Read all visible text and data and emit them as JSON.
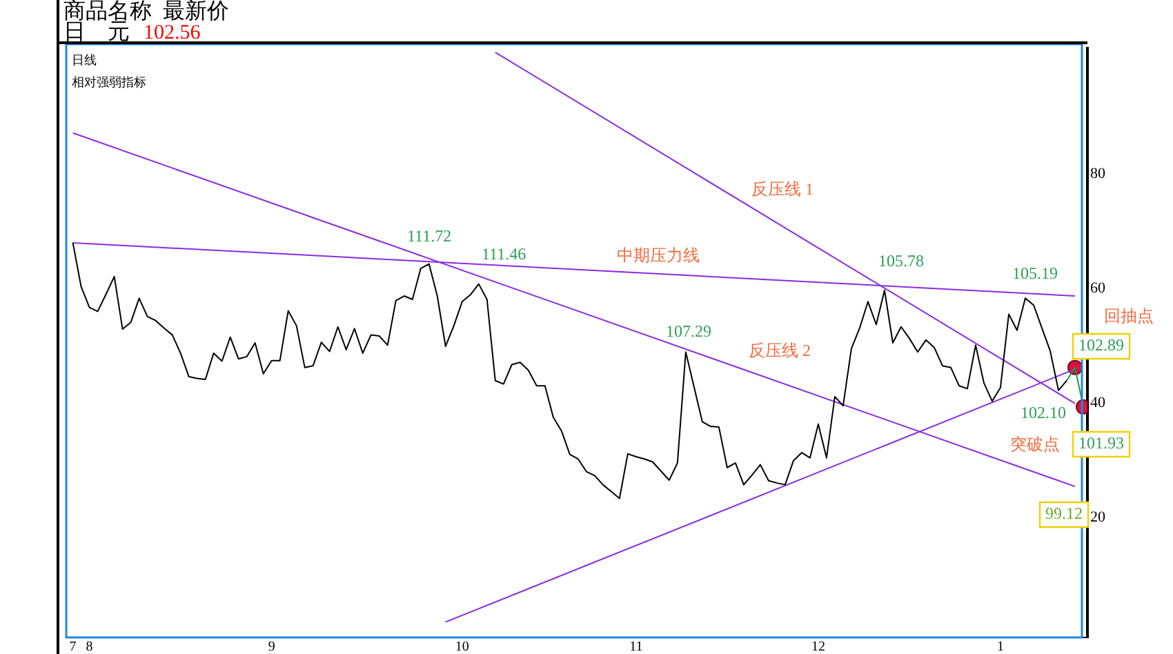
{
  "chart_data": {
    "type": "line",
    "title": "商品名称  最新价",
    "subtitle": "日    元",
    "categories": [
      "7",
      null,
      "8",
      null,
      null,
      null,
      null,
      null,
      null,
      null,
      null,
      null,
      null,
      null,
      null,
      null,
      null,
      null,
      null,
      null,
      null,
      null,
      null,
      null,
      "9",
      null,
      null,
      null,
      null,
      null,
      null,
      null,
      null,
      null,
      null,
      null,
      null,
      null,
      null,
      null,
      null,
      null,
      null,
      null,
      null,
      null,
      null,
      "10",
      null,
      null,
      null,
      null,
      null,
      null,
      null,
      null,
      null,
      null,
      null,
      null,
      null,
      null,
      null,
      null,
      null,
      null,
      null,
      null,
      "11",
      null,
      null,
      null,
      null,
      null,
      null,
      null,
      null,
      null,
      null,
      null,
      null,
      null,
      null,
      null,
      null,
      null,
      null,
      null,
      null,
      null,
      "12",
      null,
      null,
      null,
      null,
      null,
      null,
      null,
      null,
      null,
      null,
      null,
      null,
      null,
      null,
      null,
      null,
      null,
      null,
      null,
      null,
      null,
      "1",
      null,
      null,
      null,
      null,
      null,
      null,
      null,
      null,
      null,
      null
    ],
    "ylim": [
      -1,
      102
    ],
    "yticks": [
      20,
      40,
      60,
      80
    ],
    "grid": false,
    "legend": false,
    "marker": "none",
    "series": [
      {
        "color": "#000000",
        "values": [
          68.0,
          60.3,
          56.7,
          56.0,
          59.0,
          62.1,
          52.9,
          54.1,
          58.3,
          55.1,
          54.4,
          53.1,
          51.9,
          48.7,
          44.6,
          44.3,
          44.1,
          48.7,
          47.3,
          51.5,
          47.7,
          48.1,
          50.5,
          45.1,
          47.4,
          47.4,
          56.1,
          53.5,
          46.2,
          46.5,
          50.6,
          49.0,
          53.3,
          49.3,
          53.0,
          48.7,
          51.9,
          51.7,
          50.1,
          57.9,
          58.7,
          58.1,
          63.5,
          64.3,
          58.7,
          49.9,
          53.5,
          57.7,
          58.9,
          60.8,
          58.1,
          43.9,
          43.3,
          46.7,
          47.1,
          45.7,
          43.0,
          43.0,
          37.5,
          35.1,
          31.0,
          30.2,
          28.0,
          27.3,
          25.7,
          24.5,
          23.3,
          31.1,
          30.6,
          30.2,
          29.7,
          28.1,
          26.5,
          29.5,
          48.9,
          42.8,
          36.7,
          35.9,
          35.8,
          28.7,
          29.5,
          25.7,
          27.4,
          29.2,
          26.4,
          26.0,
          25.7,
          29.9,
          31.3,
          30.4,
          36.3,
          30.4,
          41.1,
          39.5,
          49.5,
          53.1,
          57.7,
          53.7,
          59.7,
          50.5,
          53.3,
          51.3,
          48.9,
          51.0,
          49.7,
          46.5,
          46.2,
          43.0,
          42.5,
          50.1,
          43.5,
          40.3,
          42.7,
          55.5,
          52.7,
          58.3,
          57.1,
          53.1,
          49.1,
          42.2,
          43.9,
          null,
          null
        ]
      },
      {
        "color": "#1a9a3a",
        "values": [
          null,
          null,
          null,
          null,
          null,
          null,
          null,
          null,
          null,
          null,
          null,
          null,
          null,
          null,
          null,
          null,
          null,
          null,
          null,
          null,
          null,
          null,
          null,
          null,
          null,
          null,
          null,
          null,
          null,
          null,
          null,
          null,
          null,
          null,
          null,
          null,
          null,
          null,
          null,
          null,
          null,
          null,
          null,
          null,
          null,
          null,
          null,
          null,
          null,
          null,
          null,
          null,
          null,
          null,
          null,
          null,
          null,
          null,
          null,
          null,
          null,
          null,
          null,
          null,
          null,
          null,
          null,
          null,
          null,
          null,
          null,
          null,
          null,
          null,
          null,
          null,
          null,
          null,
          null,
          null,
          null,
          null,
          null,
          null,
          null,
          null,
          null,
          null,
          null,
          null,
          null,
          null,
          null,
          null,
          null,
          null,
          null,
          null,
          null,
          null,
          null,
          null,
          null,
          null,
          null,
          null,
          null,
          null,
          null,
          null,
          null,
          null,
          null,
          null,
          null,
          null,
          null,
          null,
          null,
          null,
          43.9,
          46.2,
          39.3
        ]
      },
      {
        "color": "#8a2be2",
        "values": [
          68.0,
          null,
          null,
          null,
          null,
          null,
          null,
          null,
          null,
          null,
          null,
          null,
          null,
          null,
          null,
          null,
          null,
          null,
          null,
          null,
          null,
          null,
          null,
          null,
          null,
          null,
          null,
          null,
          null,
          null,
          null,
          null,
          null,
          null,
          null,
          null,
          null,
          null,
          null,
          null,
          null,
          null,
          null,
          null,
          null,
          null,
          null,
          null,
          null,
          null,
          null,
          null,
          null,
          null,
          null,
          null,
          null,
          null,
          null,
          null,
          null,
          null,
          null,
          null,
          null,
          null,
          null,
          null,
          null,
          null,
          null,
          null,
          null,
          null,
          null,
          null,
          null,
          null,
          null,
          null,
          null,
          null,
          null,
          null,
          null,
          null,
          null,
          null,
          null,
          null,
          null,
          null,
          null,
          null,
          null,
          null,
          null,
          null,
          null,
          null,
          null,
          null,
          null,
          null,
          null,
          null,
          null,
          null,
          null,
          null,
          null,
          null,
          null,
          null,
          null,
          null,
          null,
          null,
          null,
          null,
          null,
          58.7,
          null
        ]
      },
      {
        "color": "#8a2be2",
        "values": [
          null,
          null,
          null,
          null,
          null,
          null,
          null,
          null,
          null,
          null,
          null,
          null,
          null,
          null,
          null,
          null,
          null,
          null,
          null,
          null,
          null,
          null,
          null,
          null,
          null,
          null,
          null,
          null,
          null,
          null,
          null,
          null,
          null,
          null,
          null,
          null,
          null,
          null,
          null,
          null,
          null,
          null,
          null,
          null,
          null,
          null,
          null,
          null,
          null,
          null,
          null,
          101.3,
          null,
          null,
          null,
          null,
          null,
          null,
          null,
          null,
          null,
          null,
          null,
          null,
          null,
          null,
          null,
          null,
          null,
          null,
          null,
          null,
          null,
          null,
          null,
          null,
          null,
          null,
          null,
          null,
          null,
          null,
          null,
          null,
          null,
          null,
          null,
          null,
          null,
          null,
          null,
          null,
          null,
          null,
          null,
          null,
          null,
          null,
          null,
          null,
          null,
          null,
          null,
          null,
          null,
          null,
          null,
          null,
          null,
          null,
          null,
          null,
          null,
          null,
          null,
          null,
          null,
          null,
          null,
          null,
          null,
          39.9,
          null
        ]
      },
      {
        "color": "#8a2be2",
        "values": [
          87.2,
          null,
          null,
          null,
          null,
          null,
          null,
          null,
          null,
          null,
          null,
          null,
          null,
          null,
          null,
          null,
          null,
          null,
          null,
          null,
          null,
          null,
          null,
          null,
          null,
          null,
          null,
          null,
          null,
          null,
          null,
          null,
          null,
          null,
          null,
          null,
          null,
          null,
          null,
          null,
          null,
          null,
          null,
          null,
          null,
          null,
          null,
          null,
          null,
          null,
          null,
          null,
          null,
          null,
          null,
          null,
          null,
          null,
          null,
          null,
          null,
          null,
          null,
          null,
          null,
          null,
          null,
          null,
          null,
          null,
          null,
          null,
          null,
          null,
          null,
          null,
          null,
          null,
          null,
          null,
          null,
          null,
          null,
          null,
          null,
          null,
          null,
          null,
          null,
          null,
          null,
          null,
          null,
          null,
          null,
          null,
          null,
          null,
          null,
          null,
          null,
          null,
          null,
          null,
          null,
          null,
          null,
          null,
          null,
          null,
          null,
          null,
          null,
          null,
          null,
          null,
          null,
          null,
          null,
          null,
          null,
          25.4,
          null
        ]
      },
      {
        "color": "#8a2be2",
        "values": [
          null,
          null,
          null,
          null,
          null,
          null,
          null,
          null,
          null,
          null,
          null,
          null,
          null,
          null,
          null,
          null,
          null,
          null,
          null,
          null,
          null,
          null,
          null,
          null,
          null,
          null,
          null,
          null,
          null,
          null,
          null,
          null,
          null,
          null,
          null,
          null,
          null,
          null,
          null,
          null,
          null,
          null,
          null,
          null,
          null,
          1.7,
          null,
          null,
          null,
          null,
          null,
          null,
          null,
          null,
          null,
          null,
          null,
          null,
          null,
          null,
          null,
          null,
          null,
          null,
          null,
          null,
          null,
          null,
          null,
          null,
          null,
          null,
          null,
          null,
          null,
          null,
          null,
          null,
          null,
          null,
          null,
          null,
          null,
          null,
          null,
          null,
          null,
          null,
          null,
          null,
          null,
          null,
          null,
          null,
          null,
          null,
          null,
          null,
          null,
          null,
          null,
          null,
          null,
          null,
          null,
          null,
          null,
          null,
          null,
          null,
          null,
          null,
          null,
          null,
          null,
          null,
          null,
          null,
          null,
          null,
          null,
          45.9,
          null
        ]
      },
      {
        "type": "scatter",
        "marker": "circle",
        "color": "#e0103a",
        "values": [
          null,
          null,
          null,
          null,
          null,
          null,
          null,
          null,
          null,
          null,
          null,
          null,
          null,
          null,
          null,
          null,
          null,
          null,
          null,
          null,
          null,
          null,
          null,
          null,
          null,
          null,
          null,
          null,
          null,
          null,
          null,
          null,
          null,
          null,
          null,
          null,
          null,
          null,
          null,
          null,
          null,
          null,
          null,
          null,
          null,
          null,
          null,
          null,
          null,
          null,
          null,
          null,
          null,
          null,
          null,
          null,
          null,
          null,
          null,
          null,
          null,
          null,
          null,
          null,
          null,
          null,
          null,
          null,
          null,
          null,
          null,
          null,
          null,
          null,
          null,
          null,
          null,
          null,
          null,
          null,
          null,
          null,
          null,
          null,
          null,
          null,
          null,
          null,
          null,
          null,
          null,
          null,
          null,
          null,
          null,
          null,
          null,
          null,
          null,
          null,
          null,
          null,
          null,
          null,
          null,
          null,
          null,
          null,
          null,
          null,
          null,
          null,
          null,
          null,
          null,
          null,
          null,
          null,
          null,
          null,
          null,
          46.2,
          39.3
        ]
      }
    ],
    "annotations": [
      "102.56",
      "日线",
      "相对强弱指标",
      "99.12",
      "回抽点",
      "111.72",
      "111.46",
      "107.29",
      "105.78",
      "105.19",
      "102.10",
      "102.89",
      "101.93",
      "反压线 1",
      "中期压力线",
      "反压线 2",
      "突破点"
    ]
  }
}
